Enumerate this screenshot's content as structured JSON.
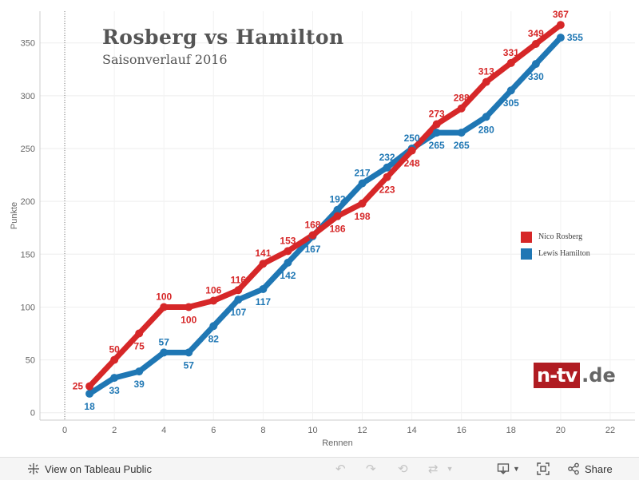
{
  "chart_data": {
    "type": "line",
    "title": "Rosberg  vs  Hamilton",
    "subtitle": "Saisonverlauf 2016",
    "xlabel": "Rennen",
    "ylabel": "Punkte",
    "xlim": [
      -1,
      23
    ],
    "ylim": [
      -7,
      380
    ],
    "x_ticks": [
      0,
      2,
      4,
      6,
      8,
      10,
      12,
      14,
      16,
      18,
      20,
      22
    ],
    "y_ticks": [
      0,
      50,
      100,
      150,
      200,
      250,
      300,
      350
    ],
    "grid": true,
    "legend_position": "right",
    "x": [
      1,
      2,
      3,
      4,
      5,
      6,
      7,
      8,
      9,
      10,
      11,
      12,
      13,
      14,
      15,
      16,
      17,
      18,
      19,
      20
    ],
    "series": [
      {
        "name": "Nico Rosberg",
        "color": "#d62728",
        "values": [
          25,
          50,
          75,
          100,
          100,
          106,
          116,
          141,
          153,
          168,
          186,
          198,
          223,
          248,
          273,
          288,
          313,
          331,
          349,
          367
        ],
        "label_positions": [
          "left",
          "above",
          "below",
          "above",
          "below",
          "above",
          "above",
          "above",
          "above",
          "above",
          "below",
          "below",
          "below",
          "below",
          "above",
          "above",
          "above",
          "above",
          "above",
          "above"
        ]
      },
      {
        "name": "Lewis Hamilton",
        "color": "#1f77b4",
        "values": [
          18,
          33,
          39,
          57,
          57,
          82,
          107,
          117,
          142,
          167,
          192,
          217,
          232,
          250,
          265,
          265,
          280,
          305,
          330,
          355
        ],
        "label_positions": [
          "below",
          "below",
          "below",
          "above",
          "below",
          "below",
          "below",
          "below",
          "below",
          "below",
          "above",
          "above",
          "above",
          "above",
          "below",
          "below",
          "below",
          "below",
          "below",
          "right"
        ]
      }
    ]
  },
  "branding": {
    "logo_box": "n-tv",
    "logo_suffix": ".de"
  },
  "toolbar": {
    "view_label": "View on Tableau Public",
    "share_label": "Share"
  }
}
